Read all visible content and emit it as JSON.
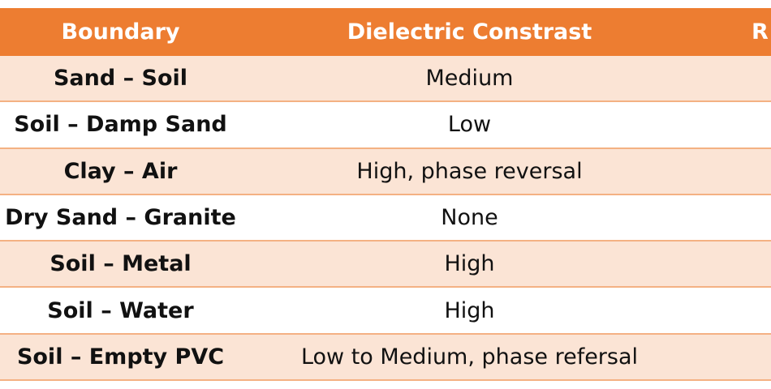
{
  "table": {
    "header": [
      "Boundary",
      "Dielectric Constrast",
      "R"
    ],
    "rows": [
      [
        "Sand – Soil",
        "Medium"
      ],
      [
        "Soil – Damp Sand",
        "Low"
      ],
      [
        "Clay – Air",
        "High, phase reversal"
      ],
      [
        "Dry Sand – Granite",
        "None"
      ],
      [
        "Soil – Metal",
        "High"
      ],
      [
        "Soil – Water",
        "High"
      ],
      [
        "Soil – Empty PVC",
        "Low to Medium, phase refersal"
      ]
    ]
  }
}
